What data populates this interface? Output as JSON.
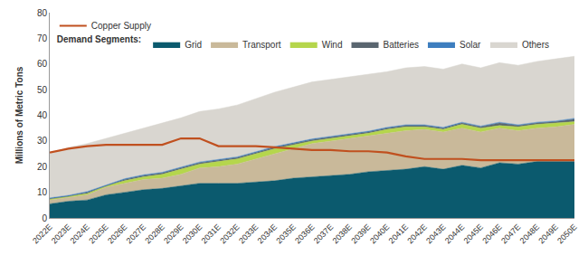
{
  "chart_data": {
    "type": "stacked_area",
    "stacked": true,
    "grid": false,
    "legend": "upper left",
    "legend_title": "Demand Segments:",
    "y_label": "Millions of Metric Tons",
    "categories": [
      "2022E",
      "2023E",
      "2024E",
      "2025E",
      "2026E",
      "2027E",
      "2028E",
      "2029E",
      "2030E",
      "2031E",
      "2032E",
      "2033E",
      "2034E",
      "2035E",
      "2036E",
      "2037E",
      "2038E",
      "2039E",
      "2040E",
      "2041E",
      "2042E",
      "2043E",
      "2044E",
      "2045E",
      "2046E",
      "2047E",
      "2048E",
      "2049E",
      "2050E"
    ],
    "ylim": [
      0,
      80
    ],
    "yticks": [
      0,
      10,
      20,
      30,
      40,
      50,
      60,
      70,
      80
    ],
    "series": [
      {
        "name": "Grid",
        "color": "#0b5a6e",
        "type": "area",
        "values": [
          5.5,
          6.5,
          7,
          9,
          10,
          11,
          11.5,
          12.5,
          13.5,
          13.5,
          13.5,
          14,
          14.5,
          15.5,
          16,
          16.5,
          17,
          18,
          18.5,
          19,
          20,
          19,
          20.5,
          19.5,
          21.5,
          21,
          22,
          22,
          22
        ]
      },
      {
        "name": "Transport",
        "color": "#c9b99a",
        "type": "area",
        "values": [
          1.5,
          1.5,
          2,
          3,
          3.5,
          4,
          4,
          4.5,
          6,
          6.5,
          7.5,
          9,
          10.5,
          11.5,
          13,
          13.5,
          14,
          14,
          14.5,
          15,
          14.5,
          14.5,
          14.5,
          14,
          13.5,
          13,
          13,
          13.5,
          14.5
        ]
      },
      {
        "name": "Wind",
        "color": "#b5d64c",
        "type": "area",
        "values": [
          0.5,
          0.5,
          0.5,
          0.5,
          1,
          1,
          1.5,
          2,
          1.5,
          2,
          2,
          2,
          2,
          1.5,
          1,
          1,
          1,
          1,
          1.5,
          1.5,
          1,
          1,
          1.5,
          1.5,
          1,
          1.5,
          1.5,
          1.5,
          1
        ]
      },
      {
        "name": "Batteries",
        "color": "#5a6670",
        "type": "area",
        "values": [
          0,
          0,
          0.5,
          0,
          0.5,
          0.5,
          0.5,
          0.5,
          0.5,
          0.5,
          0.5,
          0.5,
          0.5,
          0.5,
          0.5,
          0.5,
          0.5,
          0.5,
          0.5,
          0.5,
          0.5,
          0.5,
          0.5,
          0.5,
          1,
          0.5,
          0.5,
          0.5,
          1
        ]
      },
      {
        "name": "Solar",
        "color": "#3d7ebf",
        "type": "area",
        "values": [
          0.3,
          0.3,
          0.3,
          0.3,
          0.3,
          0.3,
          0.3,
          0.3,
          0.3,
          0.3,
          0.3,
          0.3,
          0.3,
          0.3,
          0.3,
          0.3,
          0.3,
          0.3,
          0.3,
          0.3,
          0.3,
          0.3,
          0.3,
          0.3,
          0.3,
          0.3,
          0.3,
          0.3,
          0.3
        ]
      },
      {
        "name": "Others",
        "color": "#d9d6d0",
        "type": "area",
        "values": [
          17.2,
          18.7,
          18.7,
          18.2,
          17.7,
          18.2,
          19.2,
          19.2,
          19.7,
          19.7,
          20.2,
          20.7,
          21.2,
          21.7,
          22.2,
          22.2,
          22.2,
          22.2,
          21.7,
          22.2,
          22.7,
          22.7,
          22.7,
          22.7,
          23.2,
          23.2,
          23.7,
          24.2,
          24.2
        ]
      },
      {
        "name": "Copper Supply",
        "color": "#c0501f",
        "type": "line",
        "values": [
          25.5,
          27,
          28,
          28.5,
          28.5,
          28.5,
          28.5,
          31,
          31,
          28,
          28,
          28,
          27.5,
          27,
          26.5,
          26.5,
          26,
          26,
          25.5,
          24,
          23,
          23,
          23,
          22.5,
          22.5,
          22.5,
          22.5,
          22.5,
          22.5
        ]
      }
    ]
  }
}
